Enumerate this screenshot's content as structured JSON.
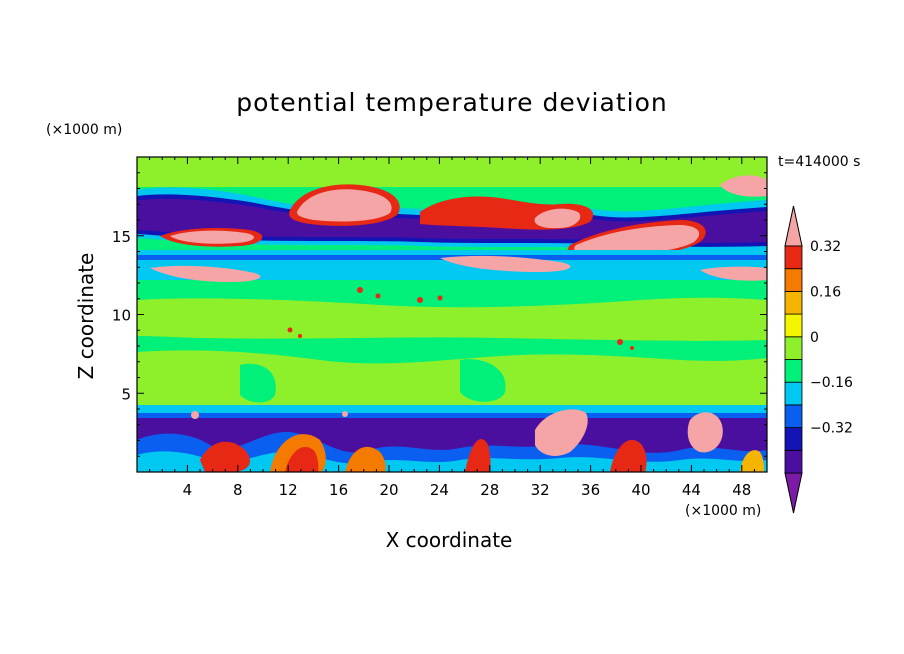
{
  "chart_data": {
    "type": "heatmap",
    "title": "potential temperature deviation",
    "xlabel": "X coordinate",
    "ylabel": "Z coordinate",
    "x_units": "(×1000 m)",
    "z_units": "(×1000 m)",
    "time_label": "t=414000 s",
    "xlim": [
      0,
      50
    ],
    "ylim": [
      0,
      20
    ],
    "x_ticks": [
      4,
      8,
      12,
      16,
      20,
      24,
      28,
      32,
      36,
      40,
      44,
      48
    ],
    "y_ticks": [
      5,
      10,
      15
    ],
    "colorbar": {
      "levels": [
        -0.48,
        -0.4,
        -0.32,
        -0.24,
        -0.16,
        -0.08,
        0,
        0.08,
        0.16,
        0.24,
        0.32,
        0.4
      ],
      "labeled_levels": [
        -0.32,
        -0.16,
        0,
        0.16,
        0.32
      ],
      "labels": [
        "−0.32",
        "−0.16",
        "0",
        "0.16",
        "0.32"
      ],
      "colors": [
        "#7a1aa6",
        "#4b0fa0",
        "#1414b4",
        "#0a5ff0",
        "#00c8f0",
        "#00f07a",
        "#8ef02a",
        "#f5f500",
        "#f5b400",
        "#f57a00",
        "#e62814",
        "#f5a5a5"
      ]
    }
  }
}
